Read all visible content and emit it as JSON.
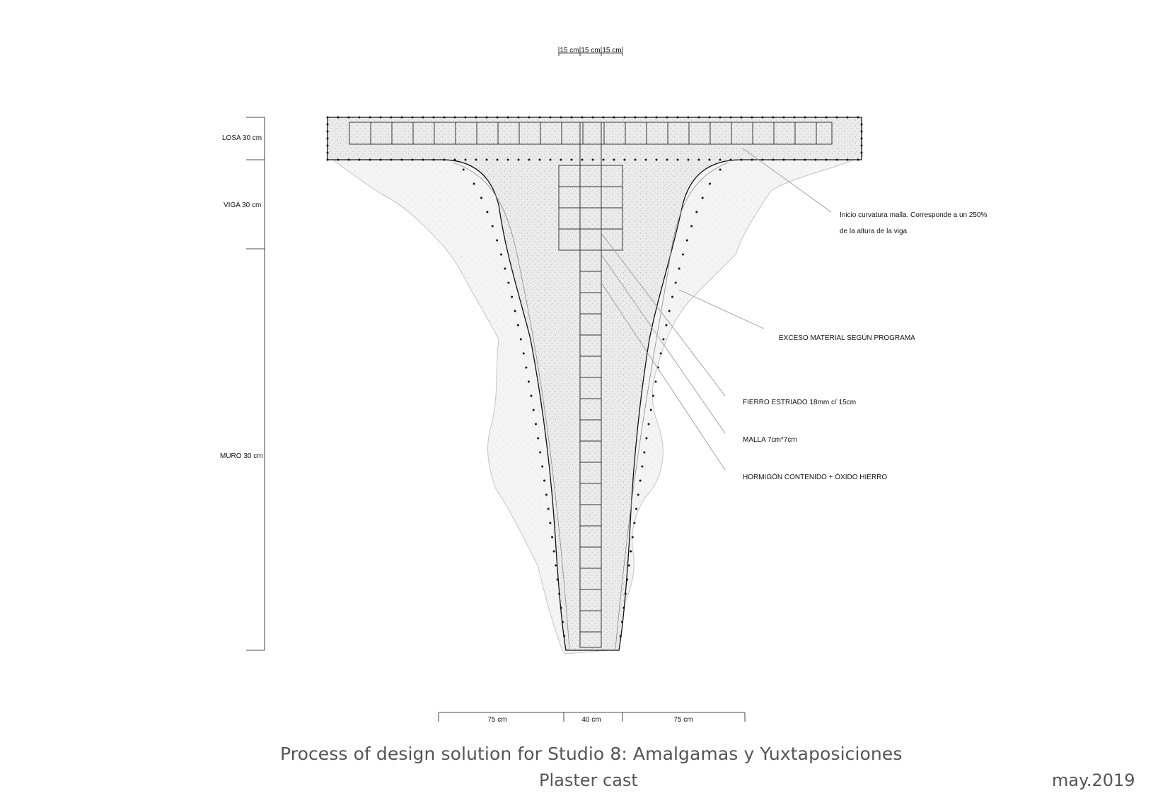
{
  "caption": {
    "title": "Process of design solution for Studio 8: Amalgamas y Yuxtaposiciones",
    "subtitle": "Plaster cast",
    "date": "may.2019"
  },
  "dimensions": {
    "top_spacing": [
      "15 cm",
      "15 cm",
      "15 cm"
    ],
    "vertical": [
      "LOSA 30 cm",
      "VIGA 30 cm",
      "MURO 30 cm"
    ],
    "bottom": [
      "75 cm",
      "40 cm",
      "75 cm"
    ]
  },
  "annotations": {
    "curvature_line1": "Inicio curvatura malla. Corresponde a un 250%",
    "curvature_line2": "de la altura de la viga",
    "excess": "EXCESO MATERIAL SEGÚN PROGRAMA",
    "rebar": "FIERRO ESTRIADO 18mm c/ 15cm",
    "mesh": "MALLA 7cm*7cm",
    "concrete": "HORMIGÓN CONTENIDO + ÓXIDO HIERRO"
  },
  "colors": {
    "line": "#111111",
    "leader": "#9a9a9a",
    "cast_fill": "#e9e9e9",
    "cast_outline": "#c4c4c4",
    "caption_text": "#555555"
  }
}
